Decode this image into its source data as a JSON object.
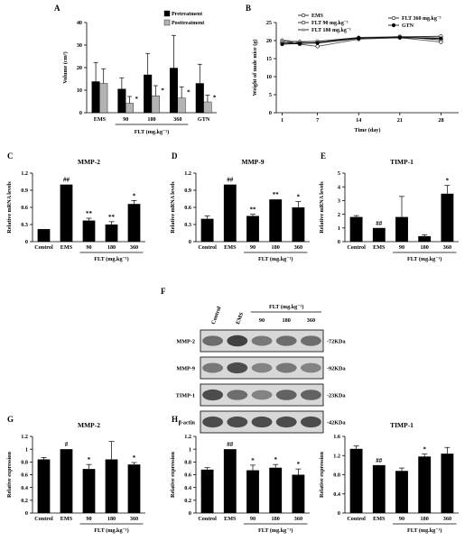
{
  "chart_data": [
    {
      "panel": "A",
      "type": "bar",
      "xlabel": "",
      "ylabel": "Volume (cm³)",
      "ylim": [
        0,
        40
      ],
      "yticks": [
        "0",
        "10",
        "20",
        "30",
        "40"
      ],
      "categories": [
        "EMS",
        "90",
        "180",
        "360",
        "GTN"
      ],
      "group_label": "FLT (mg.kg⁻¹)",
      "series": [
        {
          "name": "Pretreatment",
          "color": "#000000",
          "values": [
            13.8,
            10.5,
            16.8,
            19.8,
            13.0
          ],
          "errors": [
            8.5,
            5.0,
            9.5,
            14.5,
            8.5
          ],
          "sig": [
            "",
            "",
            "",
            "",
            ""
          ]
        },
        {
          "name": "Posttreatment",
          "color": "#b3b3b3",
          "values": [
            13.0,
            4.2,
            7.5,
            6.5,
            4.8
          ],
          "errors": [
            6.5,
            3.0,
            4.5,
            5.0,
            3.0
          ],
          "sig": [
            "",
            "*",
            "*",
            "*",
            "*"
          ]
        }
      ]
    },
    {
      "panel": "B",
      "type": "line",
      "xlabel": "Time (day)",
      "ylabel": "Weight of nude mice (g)",
      "ylim": [
        0,
        25
      ],
      "yticks": [
        "0",
        "5",
        "10",
        "15",
        "20",
        "25"
      ],
      "x": [
        1,
        4,
        7,
        14,
        21,
        28
      ],
      "xticks": [
        "1",
        "7",
        "14",
        "21",
        "28"
      ],
      "series": [
        {
          "name": "EMS",
          "marker": "open",
          "values": [
            19.5,
            19.0,
            18.4,
            20.4,
            20.8,
            19.6
          ]
        },
        {
          "name": "FLT 90 mg.kg⁻¹",
          "marker": "open",
          "values": [
            20.0,
            19.3,
            19.3,
            20.6,
            21.1,
            20.2
          ]
        },
        {
          "name": "FLT 180 mg.kg⁻¹",
          "marker": "tri",
          "values": [
            20.1,
            19.8,
            19.7,
            20.9,
            21.1,
            20.8
          ]
        },
        {
          "name": "FLT 360 mg.kg⁻¹",
          "marker": "open",
          "values": [
            19.3,
            19.6,
            19.8,
            20.8,
            21.0,
            21.2
          ]
        },
        {
          "name": "GTN",
          "marker": "filled",
          "values": [
            19.0,
            19.2,
            19.4,
            20.7,
            20.8,
            20.6
          ]
        }
      ]
    },
    {
      "panel": "C",
      "type": "bar",
      "title": "MMP-2",
      "ylabel": "Relative mRNA levels",
      "ylim": [
        0,
        1.2
      ],
      "yticks": [
        "0",
        "0.3",
        "0.6",
        "0.9",
        "1.2"
      ],
      "categories": [
        "Control",
        "EMS",
        "90",
        "180",
        "360"
      ],
      "group_label": "FLT (mg.kg⁻¹)",
      "values": [
        0.22,
        1.0,
        0.37,
        0.3,
        0.66
      ],
      "errors": [
        0.0,
        0.0,
        0.04,
        0.05,
        0.06
      ],
      "sig": [
        "",
        "##",
        "**",
        "**",
        "*"
      ]
    },
    {
      "panel": "D",
      "type": "bar",
      "title": "MMP-9",
      "ylabel": "Relative mRNA levels",
      "ylim": [
        0,
        1.2
      ],
      "yticks": [
        "0",
        "0.3",
        "0.6",
        "0.9",
        "1.2"
      ],
      "categories": [
        "Control",
        "EMS",
        "90",
        "180",
        "360"
      ],
      "group_label": "FLT (mg.kg⁻¹)",
      "values": [
        0.4,
        1.0,
        0.45,
        0.74,
        0.6
      ],
      "errors": [
        0.05,
        0.0,
        0.03,
        0.0,
        0.1
      ],
      "sig": [
        "",
        "##",
        "**",
        "**",
        "*"
      ]
    },
    {
      "panel": "E",
      "type": "bar",
      "title": "TIMP-1",
      "ylabel": "Relative mRNA levels",
      "ylim": [
        0,
        5
      ],
      "yticks": [
        "0",
        "1",
        "2",
        "3",
        "4",
        "5"
      ],
      "categories": [
        "Control",
        "EMS",
        "90",
        "180",
        "360"
      ],
      "group_label": "FLT (mg.kg⁻¹)",
      "values": [
        1.8,
        1.0,
        1.8,
        0.4,
        3.5
      ],
      "errors": [
        0.1,
        0.0,
        1.5,
        0.1,
        0.6
      ],
      "sig": [
        "",
        "##",
        "",
        "",
        "*"
      ]
    },
    {
      "panel": "G",
      "type": "bar",
      "title": "MMP-2",
      "ylabel": "Relative expression",
      "ylim": [
        0,
        1.2
      ],
      "yticks": [
        "0",
        "0.2",
        "0.4",
        "0.6",
        "0.8",
        "1",
        "1.2"
      ],
      "categories": [
        "Control",
        "EMS",
        "90",
        "180",
        "360"
      ],
      "group_label": "FLT (mg.kg⁻¹)",
      "values": [
        0.84,
        1.0,
        0.69,
        0.84,
        0.76
      ],
      "errors": [
        0.03,
        0.0,
        0.07,
        0.28,
        0.03
      ],
      "sig": [
        "",
        "#",
        "*",
        "",
        "*"
      ]
    },
    {
      "panel": "H",
      "type": "bar",
      "title": "MMP-9",
      "ylabel": "Relative expression",
      "ylim": [
        0,
        1.2
      ],
      "yticks": [
        "0",
        "0.2",
        "0.4",
        "0.6",
        "0.8",
        "1",
        "1.2"
      ],
      "categories": [
        "Control",
        "EMS",
        "90",
        "180",
        "360"
      ],
      "group_label": "FLT (mg.kg⁻¹)",
      "values": [
        0.68,
        1.0,
        0.67,
        0.71,
        0.6
      ],
      "errors": [
        0.03,
        0.0,
        0.08,
        0.05,
        0.09
      ],
      "sig": [
        "",
        "##",
        "*",
        "*",
        "*"
      ]
    },
    {
      "panel": "I",
      "type": "bar",
      "title": "TIMP-1",
      "ylabel": "Relative expression",
      "ylim": [
        0,
        1.6
      ],
      "yticks": [
        "0",
        "0.4",
        "0.8",
        "1.2",
        "1.6"
      ],
      "categories": [
        "Control",
        "EMS",
        "90",
        "180",
        "360"
      ],
      "group_label": "FLT (mg.kg⁻¹)",
      "values": [
        1.34,
        1.0,
        0.88,
        1.18,
        1.24
      ],
      "errors": [
        0.06,
        0.0,
        0.06,
        0.05,
        0.13
      ],
      "sig": [
        "",
        "##",
        "",
        "*",
        ""
      ]
    }
  ],
  "western_blot": {
    "panel": "F",
    "lanes": [
      "Control",
      "EMS",
      "90",
      "180",
      "360"
    ],
    "group_label": "FLT (mg.kg⁻¹)",
    "rows": [
      {
        "protein": "MMP-2",
        "size": "-72KDa",
        "intensity": [
          0.55,
          0.75,
          0.5,
          0.55,
          0.55
        ]
      },
      {
        "protein": "MMP-9",
        "size": "-92KDa",
        "intensity": [
          0.5,
          0.7,
          0.45,
          0.5,
          0.45
        ]
      },
      {
        "protein": "TIMP-1",
        "size": "-23KDa",
        "intensity": [
          0.7,
          0.55,
          0.45,
          0.6,
          0.6
        ]
      },
      {
        "protein": "β-actin",
        "size": "-42KDa",
        "intensity": [
          0.7,
          0.7,
          0.7,
          0.7,
          0.7
        ]
      }
    ]
  }
}
